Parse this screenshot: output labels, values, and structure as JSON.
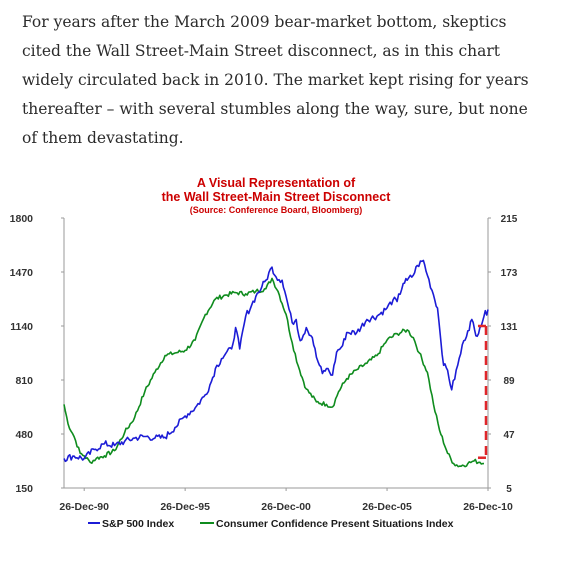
{
  "article": {
    "lines": [
      "For years after the March 2009 bear-market bottom, skeptics",
      "cited the Wall Street-Main Street disconnect, as in this chart",
      "widely circulated back in 2010. The market kept rising for years",
      "thereafter – with several stumbles along the way, sure, but none",
      "of them devastating."
    ]
  },
  "chart_data": {
    "type": "line",
    "title_lines": [
      "A Visual Representation of",
      "the Wall Street-Main Street Disconnect"
    ],
    "subtitle": "(Source: Conference Board, Bloomberg)",
    "x_tick_labels": [
      "26-Dec-90",
      "26-Dec-95",
      "26-Dec-00",
      "26-Dec-05",
      "26-Dec-10"
    ],
    "x_ticks": [
      1991.0,
      1996.0,
      2001.0,
      2006.0,
      2011.0
    ],
    "xlim": [
      1990.0,
      2011.0
    ],
    "y_left": {
      "ticks": [
        150,
        480,
        810,
        1140,
        1470,
        1800
      ],
      "ylim": [
        150,
        1800
      ]
    },
    "y_right": {
      "ticks": [
        5,
        47,
        89,
        131,
        173,
        215
      ],
      "ylim": [
        5,
        215
      ]
    },
    "legend_placement": "bottom",
    "series": [
      {
        "name": "S&P 500 Index",
        "axis": "left",
        "color": "#1c1cd6",
        "x": [
          1990.0,
          1990.5,
          1991.0,
          1991.5,
          1992.0,
          1992.5,
          1993.0,
          1993.5,
          1994.0,
          1994.5,
          1995.0,
          1995.5,
          1996.0,
          1996.5,
          1997.0,
          1997.3,
          1997.5,
          1997.8,
          1998.0,
          1998.3,
          1998.5,
          1998.7,
          1999.0,
          1999.3,
          1999.5,
          1999.8,
          2000.0,
          2000.3,
          2000.5,
          2000.8,
          2001.0,
          2001.3,
          2001.5,
          2001.7,
          2002.0,
          2002.3,
          2002.5,
          2002.8,
          2003.0,
          2003.3,
          2003.5,
          2003.8,
          2004.0,
          2004.5,
          2005.0,
          2005.5,
          2006.0,
          2006.3,
          2006.5,
          2006.8,
          2007.0,
          2007.3,
          2007.5,
          2007.8,
          2008.0,
          2008.3,
          2008.5,
          2008.8,
          2009.0,
          2009.2,
          2009.5,
          2009.8,
          2010.0,
          2010.2,
          2010.4,
          2010.6,
          2010.8,
          2011.0
        ],
        "values": [
          330,
          345,
          330,
          385,
          420,
          410,
          435,
          455,
          465,
          455,
          460,
          520,
          590,
          640,
          720,
          800,
          880,
          940,
          970,
          1000,
          1130,
          1000,
          1200,
          1270,
          1320,
          1380,
          1420,
          1500,
          1440,
          1420,
          1320,
          1160,
          1180,
          1050,
          1130,
          1070,
          950,
          850,
          880,
          840,
          980,
          1020,
          1100,
          1100,
          1180,
          1200,
          1250,
          1300,
          1290,
          1400,
          1420,
          1450,
          1510,
          1540,
          1450,
          1330,
          1250,
          900,
          870,
          750,
          900,
          1050,
          1110,
          1180,
          1080,
          1130,
          1200,
          1240
        ]
      },
      {
        "name": "Consumer Confidence Present Situations Index",
        "axis": "right",
        "color": "#0f8c1e",
        "x": [
          1990.0,
          1990.2,
          1990.5,
          1990.8,
          1991.0,
          1991.3,
          1991.6,
          1992.0,
          1992.5,
          1993.0,
          1993.5,
          1994.0,
          1994.5,
          1995.0,
          1995.5,
          1996.0,
          1996.5,
          1997.0,
          1997.5,
          1998.0,
          1998.5,
          1999.0,
          1999.5,
          2000.0,
          2000.3,
          2000.6,
          2001.0,
          2001.3,
          2001.6,
          2002.0,
          2002.5,
          2003.0,
          2003.3,
          2003.6,
          2004.0,
          2004.5,
          2005.0,
          2005.5,
          2006.0,
          2006.5,
          2007.0,
          2007.3,
          2007.6,
          2008.0,
          2008.3,
          2008.6,
          2009.0,
          2009.3,
          2009.6,
          2010.0,
          2010.3,
          2010.6,
          2010.8
        ],
        "values": [
          70,
          55,
          45,
          32,
          30,
          25,
          28,
          30,
          34,
          48,
          60,
          80,
          95,
          108,
          110,
          112,
          120,
          140,
          152,
          155,
          157,
          156,
          158,
          160,
          168,
          158,
          140,
          118,
          100,
          82,
          72,
          70,
          68,
          80,
          90,
          97,
          102,
          108,
          120,
          125,
          128,
          122,
          110,
          95,
          70,
          50,
          32,
          24,
          22,
          24,
          26,
          25,
          24
        ]
      }
    ],
    "annotations": [
      {
        "type": "bracket",
        "style": "dashed",
        "color": "#e0262a",
        "x": 2010.9,
        "y_from": 1140,
        "y_to": 335
      }
    ]
  }
}
